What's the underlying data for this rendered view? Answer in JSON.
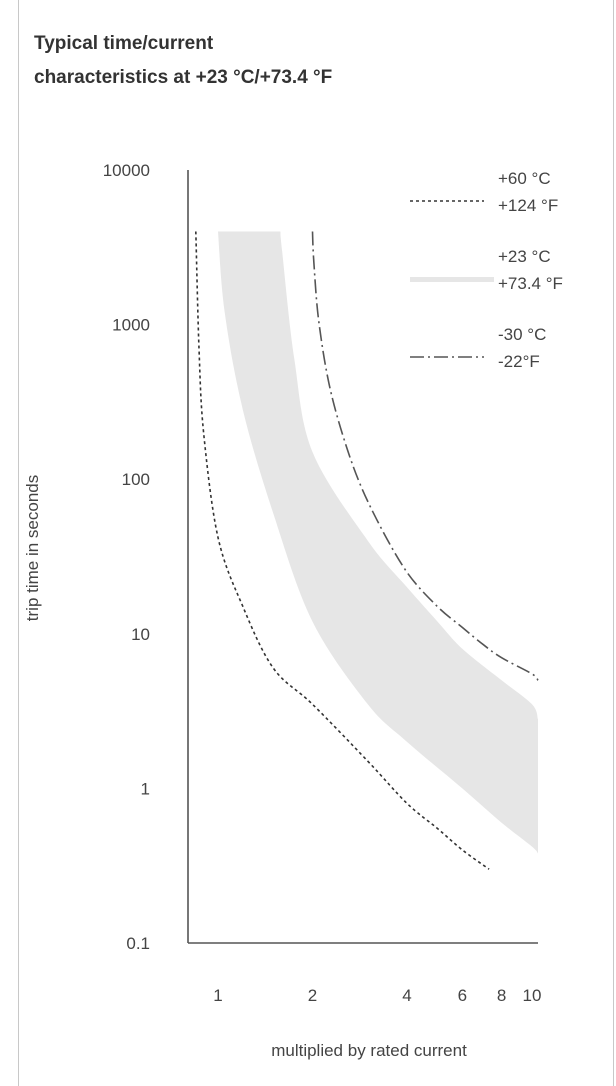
{
  "chart_data": {
    "type": "line",
    "title": [
      "Typical time/current",
      "characteristics at +23 °C/+73.4 °F"
    ],
    "xlabel": "multiplied by rated current",
    "ylabel": "trip time in seconds",
    "x_scale": "log",
    "y_scale": "log",
    "xlim": [
      0.85,
      11
    ],
    "ylim": [
      0.1,
      10000
    ],
    "x_ticks": [
      1,
      2,
      4,
      6,
      8,
      10
    ],
    "x_tick_labels": [
      "1",
      "2",
      "4",
      "6",
      "8",
      "10"
    ],
    "y_ticks": [
      0.1,
      1,
      10,
      100,
      1000,
      10000
    ],
    "y_tick_labels": [
      "0.1",
      "1",
      "10",
      "100",
      "1000",
      "10000"
    ],
    "grid": false,
    "legend_position": "top-right",
    "series": [
      {
        "name": [
          "+60 °C",
          "+124 °F"
        ],
        "style": "dotted",
        "color": "#333333",
        "x": [
          0.85,
          0.87,
          0.9,
          1.0,
          1.2,
          1.5,
          2.0,
          3.0,
          4.0,
          5.0,
          6.0,
          7.3
        ],
        "y": [
          4000,
          700,
          200,
          42,
          15,
          6,
          3.5,
          1.5,
          0.8,
          0.55,
          0.4,
          0.3
        ]
      },
      {
        "name": [
          "+23 °C",
          "+73.4 °F"
        ],
        "style": "band",
        "color": "#e6e6e6",
        "upper": {
          "x": [
            1.58,
            1.6,
            1.75,
            2.0,
            3.0,
            4.0,
            5.0,
            6.0,
            8.0,
            10.0,
            11.0
          ],
          "y": [
            4000,
            3000,
            600,
            150,
            40,
            20,
            12,
            8,
            5,
            3.5,
            2.8
          ]
        },
        "lower": {
          "x": [
            1.0,
            1.05,
            1.2,
            1.5,
            2.0,
            3.0,
            4.0,
            6.0,
            8.0,
            10.0,
            11.0
          ],
          "y": [
            4000,
            1200,
            280,
            60,
            12,
            3.5,
            2,
            1,
            0.6,
            0.42,
            0.38
          ]
        }
      },
      {
        "name": [
          "-30 °C",
          "-22°F"
        ],
        "style": "dashdot",
        "color": "#555555",
        "x": [
          2.0,
          2.02,
          2.1,
          2.3,
          2.7,
          3.2,
          4.0,
          5.0,
          6.0,
          7.0,
          8.0,
          10.0,
          11.0
        ],
        "y": [
          4000,
          2500,
          1000,
          350,
          120,
          55,
          25,
          15,
          11,
          8.5,
          7,
          5.5,
          5
        ]
      }
    ]
  }
}
